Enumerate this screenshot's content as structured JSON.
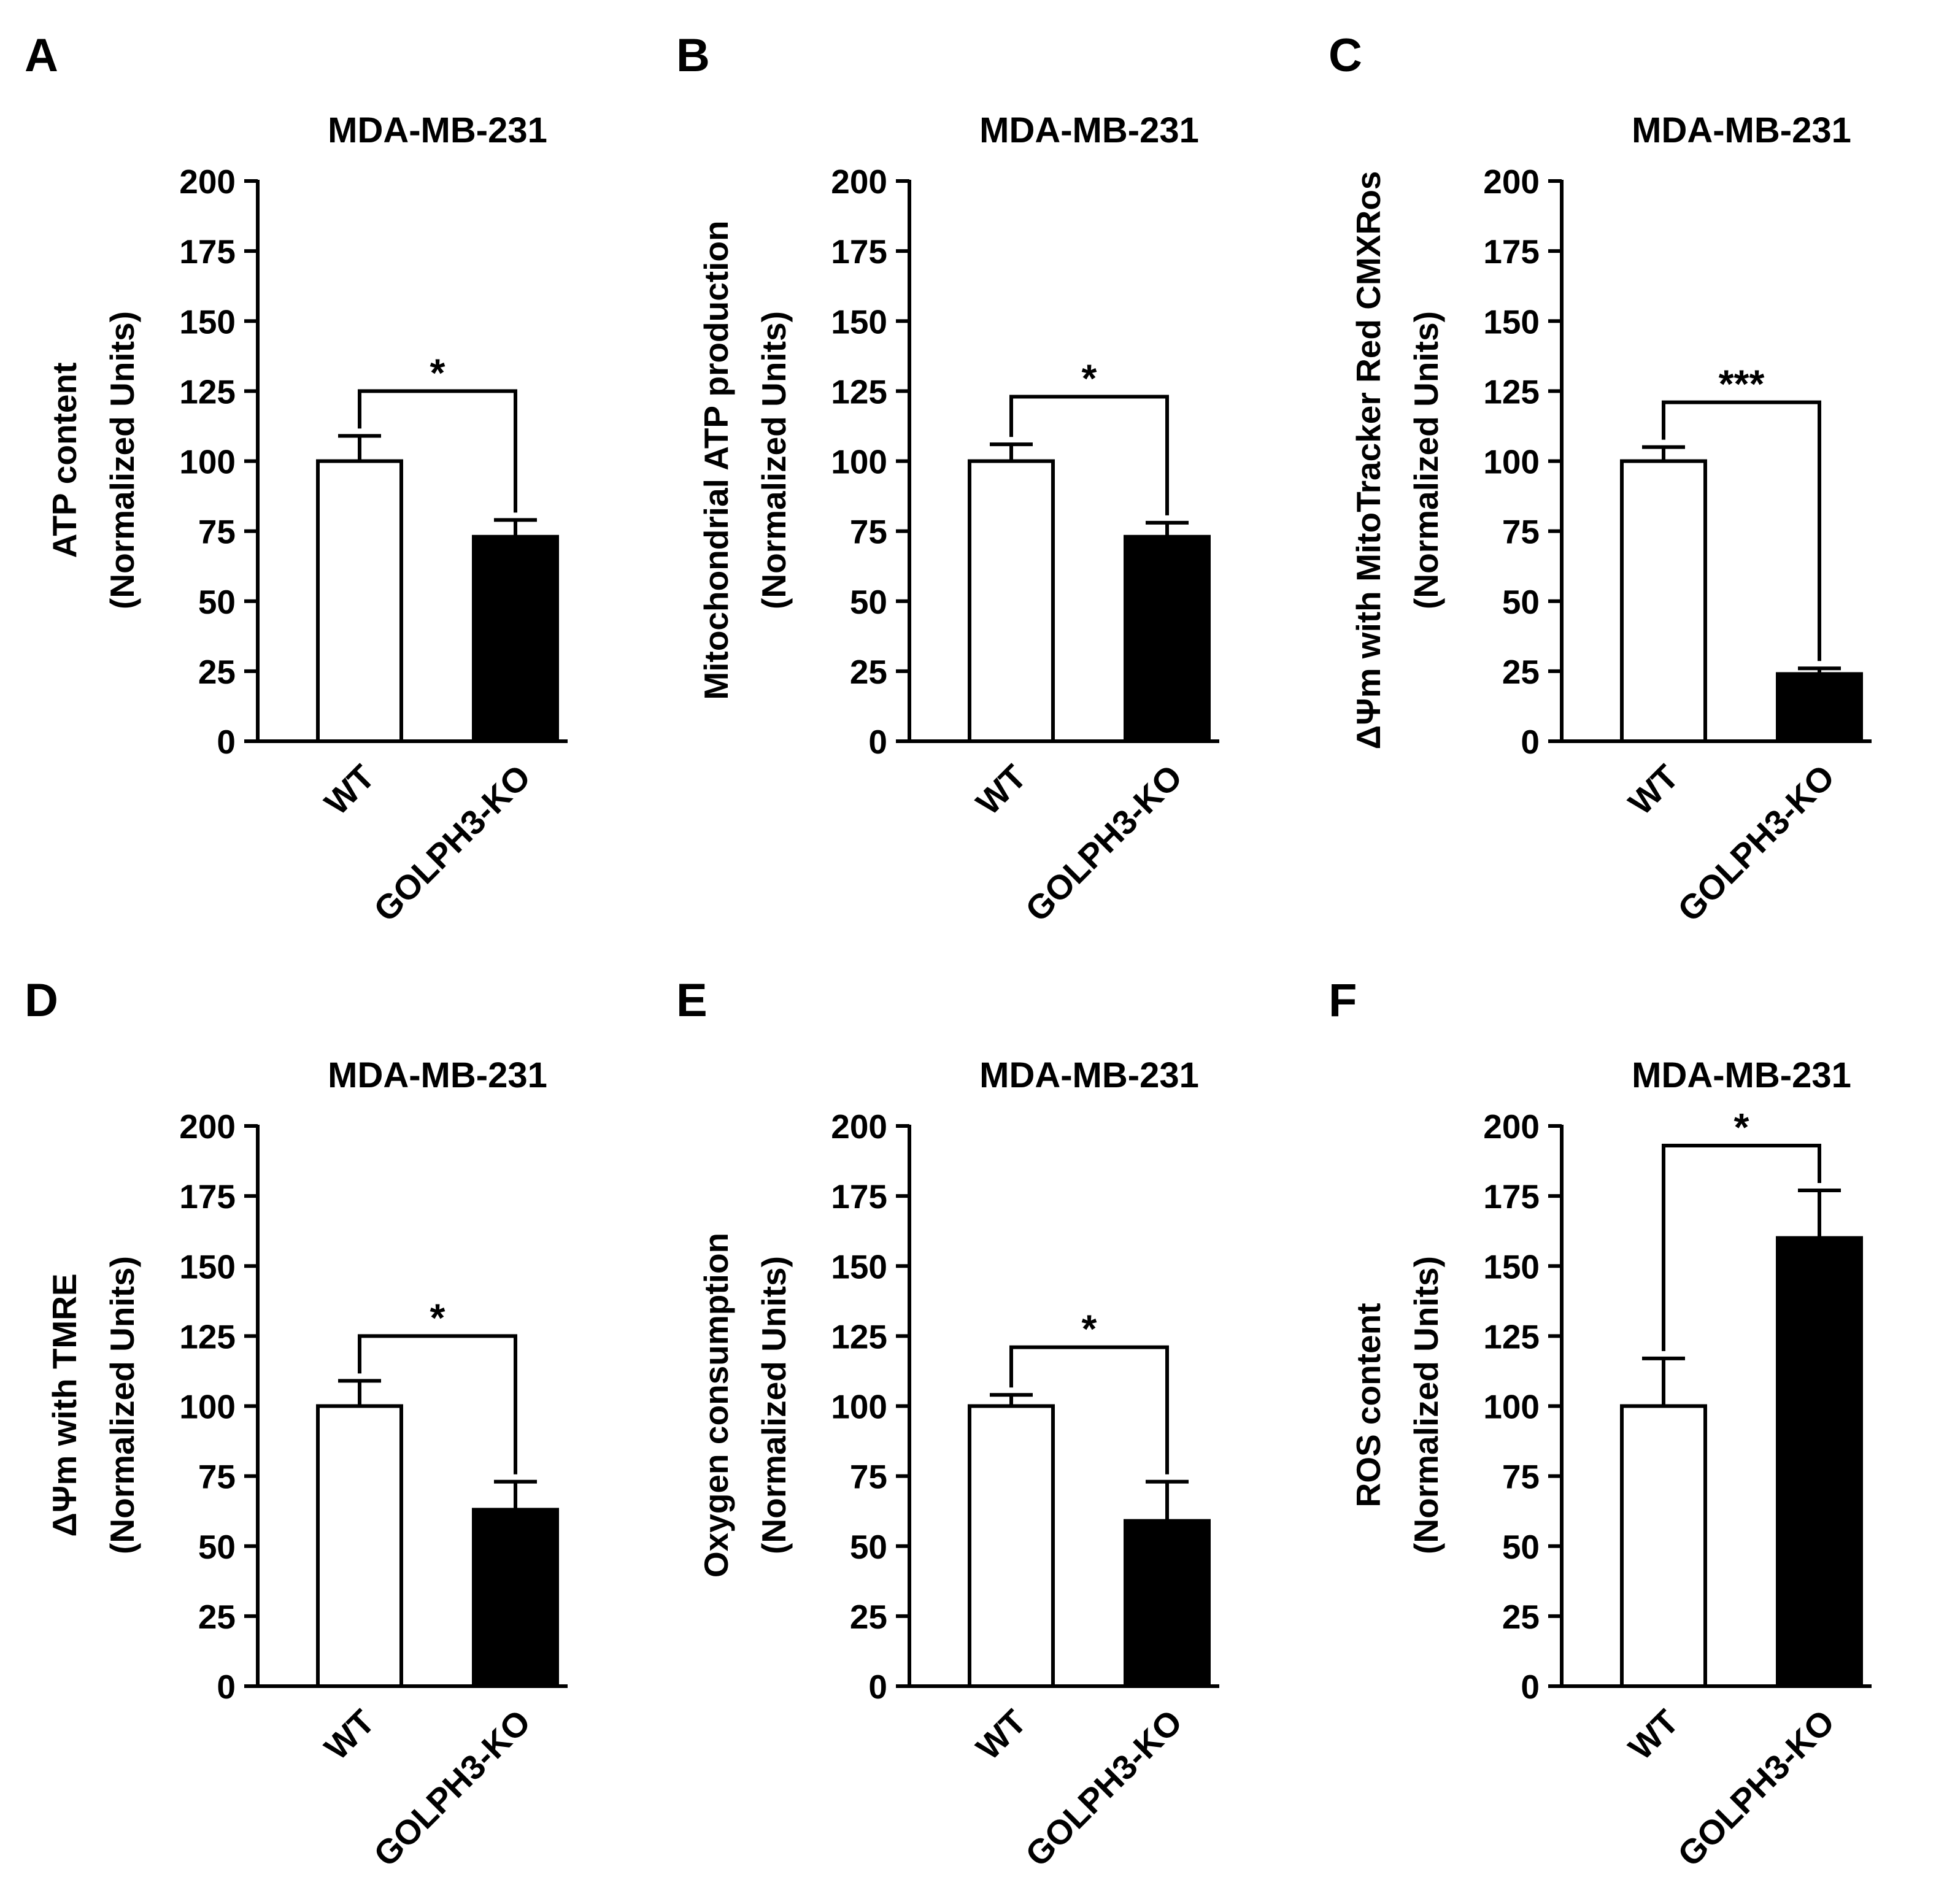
{
  "chart_data": [
    {
      "panel_label": "A",
      "type": "bar",
      "title": "MDA-MB-231",
      "ylabel_line1": "ATP content",
      "ylabel_line2": "(Normalized Units)",
      "ylim": [
        0,
        200
      ],
      "yticks": [
        "0",
        "25",
        "50",
        "75",
        "100",
        "125",
        "150",
        "175",
        "200"
      ],
      "categories": [
        "WT",
        "GOLPH3-KO"
      ],
      "values": [
        100,
        73
      ],
      "errors": [
        9,
        6
      ],
      "fill_colors": [
        "#ffffff",
        "#000000"
      ],
      "significance": {
        "label": "*",
        "bracket_y": 125
      }
    },
    {
      "panel_label": "B",
      "type": "bar",
      "title": "MDA-MB-231",
      "ylabel_line1": "Mitochondrial ATP production",
      "ylabel_line2": "(Normalized Units)",
      "ylim": [
        0,
        200
      ],
      "yticks": [
        "0",
        "25",
        "50",
        "75",
        "100",
        "125",
        "150",
        "175",
        "200"
      ],
      "categories": [
        "WT",
        "GOLPH3-KO"
      ],
      "values": [
        100,
        73
      ],
      "errors": [
        6,
        5
      ],
      "fill_colors": [
        "#ffffff",
        "#000000"
      ],
      "significance": {
        "label": "*",
        "bracket_y": 123
      }
    },
    {
      "panel_label": "C",
      "type": "bar",
      "title": "MDA-MB-231",
      "ylabel_line1": "ΔΨm with MitoTracker Red CMXRos",
      "ylabel_line2": "(Normalized Units)",
      "ylim": [
        0,
        200
      ],
      "yticks": [
        "0",
        "25",
        "50",
        "75",
        "100",
        "125",
        "150",
        "175",
        "200"
      ],
      "categories": [
        "WT",
        "GOLPH3-KO"
      ],
      "values": [
        100,
        24
      ],
      "errors": [
        5,
        2
      ],
      "fill_colors": [
        "#ffffff",
        "#000000"
      ],
      "significance": {
        "label": "***",
        "bracket_y": 121
      }
    },
    {
      "panel_label": "D",
      "type": "bar",
      "title": "MDA-MB-231",
      "ylabel_line1": "ΔΨm with TMRE",
      "ylabel_line2": "(Normalized Units)",
      "ylim": [
        0,
        200
      ],
      "yticks": [
        "0",
        "25",
        "50",
        "75",
        "100",
        "125",
        "150",
        "175",
        "200"
      ],
      "categories": [
        "WT",
        "GOLPH3-KO"
      ],
      "values": [
        100,
        63
      ],
      "errors": [
        9,
        10
      ],
      "fill_colors": [
        "#ffffff",
        "#000000"
      ],
      "significance": {
        "label": "*",
        "bracket_y": 125
      }
    },
    {
      "panel_label": "E",
      "type": "bar",
      "title": "MDA-MB-231",
      "ylabel_line1": "Oxygen consumption",
      "ylabel_line2": "(Normalized Units)",
      "ylim": [
        0,
        200
      ],
      "yticks": [
        "0",
        "25",
        "50",
        "75",
        "100",
        "125",
        "150",
        "175",
        "200"
      ],
      "categories": [
        "WT",
        "GOLPH3-KO"
      ],
      "values": [
        100,
        59
      ],
      "errors": [
        4,
        14
      ],
      "fill_colors": [
        "#ffffff",
        "#000000"
      ],
      "significance": {
        "label": "*",
        "bracket_y": 121
      }
    },
    {
      "panel_label": "F",
      "type": "bar",
      "title": "MDA-MB-231",
      "ylabel_line1": "ROS content",
      "ylabel_line2": "(Normalized Units)",
      "ylim": [
        0,
        200
      ],
      "yticks": [
        "0",
        "25",
        "50",
        "75",
        "100",
        "125",
        "150",
        "175",
        "200"
      ],
      "categories": [
        "WT",
        "GOLPH3-KO"
      ],
      "values": [
        100,
        160
      ],
      "errors": [
        17,
        17
      ],
      "fill_colors": [
        "#ffffff",
        "#000000"
      ],
      "significance": {
        "label": "*",
        "bracket_y": 193
      }
    }
  ]
}
